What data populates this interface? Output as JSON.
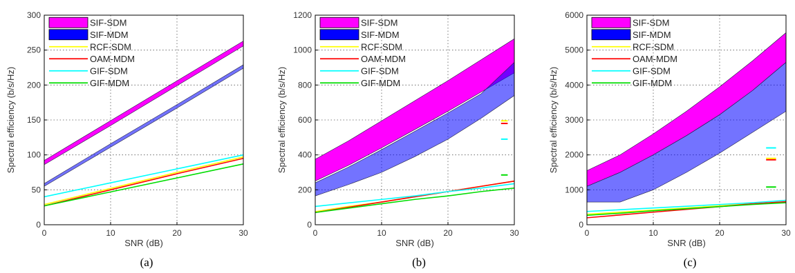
{
  "legend": {
    "entries": [
      {
        "name": "SIF-SDM",
        "kind": "band",
        "color": "#ff00ff"
      },
      {
        "name": "SIF-MDM",
        "kind": "band",
        "color": "#0000ff"
      },
      {
        "name": "RCF-SDM",
        "kind": "line",
        "color": "#ffff00"
      },
      {
        "name": "OAM-MDM",
        "kind": "line",
        "color": "#ff0000"
      },
      {
        "name": "GIF-SDM",
        "kind": "line",
        "color": "#00ffff"
      },
      {
        "name": "GIF-MDM",
        "kind": "line",
        "color": "#00dd00"
      }
    ]
  },
  "chart_data": [
    {
      "type": "area",
      "caption": "(a)",
      "xlabel": "SNR (dB)",
      "ylabel": "Spectral efficiency (b/s/Hz)",
      "xlim": [
        0,
        30
      ],
      "ylim": [
        0,
        300
      ],
      "xticks": [
        0,
        10,
        20,
        30
      ],
      "yticks": [
        0,
        50,
        100,
        150,
        200,
        250,
        300
      ],
      "grid": true,
      "legend_position": "top-left",
      "x": [
        0,
        10,
        20,
        30
      ],
      "bands": [
        {
          "name": "SIF-SDM",
          "upper": [
            92,
            149,
            206,
            263
          ],
          "lower": [
            86,
            142,
            199,
            256
          ]
        },
        {
          "name": "SIF-MDM",
          "upper": [
            59,
            116,
            172,
            229
          ],
          "lower": [
            55,
            111,
            167,
            224
          ]
        }
      ],
      "series": [
        {
          "name": "RCF-SDM",
          "values": [
            29,
            52,
            75,
            97
          ]
        },
        {
          "name": "OAM-MDM",
          "values": [
            27,
            50,
            73,
            95
          ]
        },
        {
          "name": "GIF-SDM",
          "values": [
            40,
            60,
            80,
            100
          ]
        },
        {
          "name": "GIF-MDM",
          "values": [
            27,
            47,
            67,
            87
          ]
        }
      ],
      "markers": []
    },
    {
      "type": "area",
      "caption": "(b)",
      "xlabel": "SNR (dB)",
      "ylabel": "Spectral efficiency (b/s/Hz)",
      "xlim": [
        0,
        30
      ],
      "ylim": [
        0,
        1200
      ],
      "xticks": [
        0,
        10,
        20,
        30
      ],
      "yticks": [
        0,
        200,
        400,
        600,
        800,
        1000,
        1200
      ],
      "grid": true,
      "legend_position": "top-left",
      "x": [
        0,
        5,
        10,
        15,
        20,
        25,
        30
      ],
      "bands": [
        {
          "name": "SIF-SDM",
          "upper": [
            375,
            480,
            595,
            710,
            825,
            945,
            1065
          ],
          "lower": [
            250,
            340,
            440,
            545,
            650,
            760,
            870
          ]
        },
        {
          "name": "SIF-MDM",
          "upper": [
            240,
            330,
            430,
            535,
            640,
            750,
            930
          ],
          "lower": [
            165,
            230,
            300,
            390,
            490,
            610,
            740
          ]
        }
      ],
      "series": [
        {
          "name": "RCF-SDM",
          "values": [
            75,
            105,
            130,
            160,
            190,
            220,
            250
          ]
        },
        {
          "name": "OAM-MDM",
          "values": [
            70,
            100,
            130,
            160,
            190,
            220,
            250
          ]
        },
        {
          "name": "GIF-SDM",
          "values": [
            105,
            125,
            145,
            165,
            190,
            210,
            235
          ]
        },
        {
          "name": "GIF-MDM",
          "values": [
            70,
            95,
            120,
            145,
            165,
            190,
            210
          ]
        }
      ],
      "markers": [
        {
          "name": "RCF-SDM",
          "x": [
            28,
            29
          ],
          "y": 595
        },
        {
          "name": "OAM-MDM",
          "x": [
            28,
            29
          ],
          "y": 580
        },
        {
          "name": "GIF-SDM",
          "x": [
            28,
            29
          ],
          "y": 490
        },
        {
          "name": "GIF-MDM",
          "x": [
            28,
            29
          ],
          "y": 285
        }
      ]
    },
    {
      "type": "area",
      "caption": "(c)",
      "xlabel": "SNR (dB)",
      "ylabel": "Spectral efficiency (b/s/Hz)",
      "xlim": [
        0,
        30
      ],
      "ylim": [
        0,
        6000
      ],
      "xticks": [
        0,
        10,
        20,
        30
      ],
      "yticks": [
        0,
        1000,
        2000,
        3000,
        4000,
        5000,
        6000
      ],
      "grid": true,
      "legend_position": "top-left",
      "x": [
        0,
        5,
        10,
        15,
        20,
        25,
        30
      ],
      "bands": [
        {
          "name": "SIF-SDM",
          "upper": [
            1550,
            2000,
            2600,
            3250,
            3950,
            4700,
            5500
          ],
          "lower": [
            1100,
            1500,
            2000,
            2550,
            3150,
            3850,
            4650
          ]
        },
        {
          "name": "SIF-MDM",
          "upper": [
            1100,
            1500,
            2000,
            2550,
            3150,
            3850,
            4650
          ],
          "lower": [
            650,
            650,
            1000,
            1500,
            2050,
            2650,
            3250
          ]
        }
      ],
      "series": [
        {
          "name": "RCF-SDM",
          "values": [
            300,
            360,
            420,
            480,
            540,
            600,
            650
          ]
        },
        {
          "name": "OAM-MDM",
          "values": [
            200,
            280,
            360,
            440,
            520,
            600,
            660
          ]
        },
        {
          "name": "GIF-SDM",
          "values": [
            380,
            430,
            480,
            530,
            580,
            630,
            700
          ]
        },
        {
          "name": "GIF-MDM",
          "values": [
            270,
            330,
            400,
            460,
            520,
            580,
            630
          ]
        }
      ],
      "markers": [
        {
          "name": "RCF-SDM",
          "x": [
            27,
            28.5
          ],
          "y": 1900
        },
        {
          "name": "OAM-MDM",
          "x": [
            27,
            28.5
          ],
          "y": 1860
        },
        {
          "name": "GIF-SDM",
          "x": [
            27,
            28.5
          ],
          "y": 2200
        },
        {
          "name": "GIF-MDM",
          "x": [
            27,
            28.5
          ],
          "y": 1080
        }
      ]
    }
  ]
}
